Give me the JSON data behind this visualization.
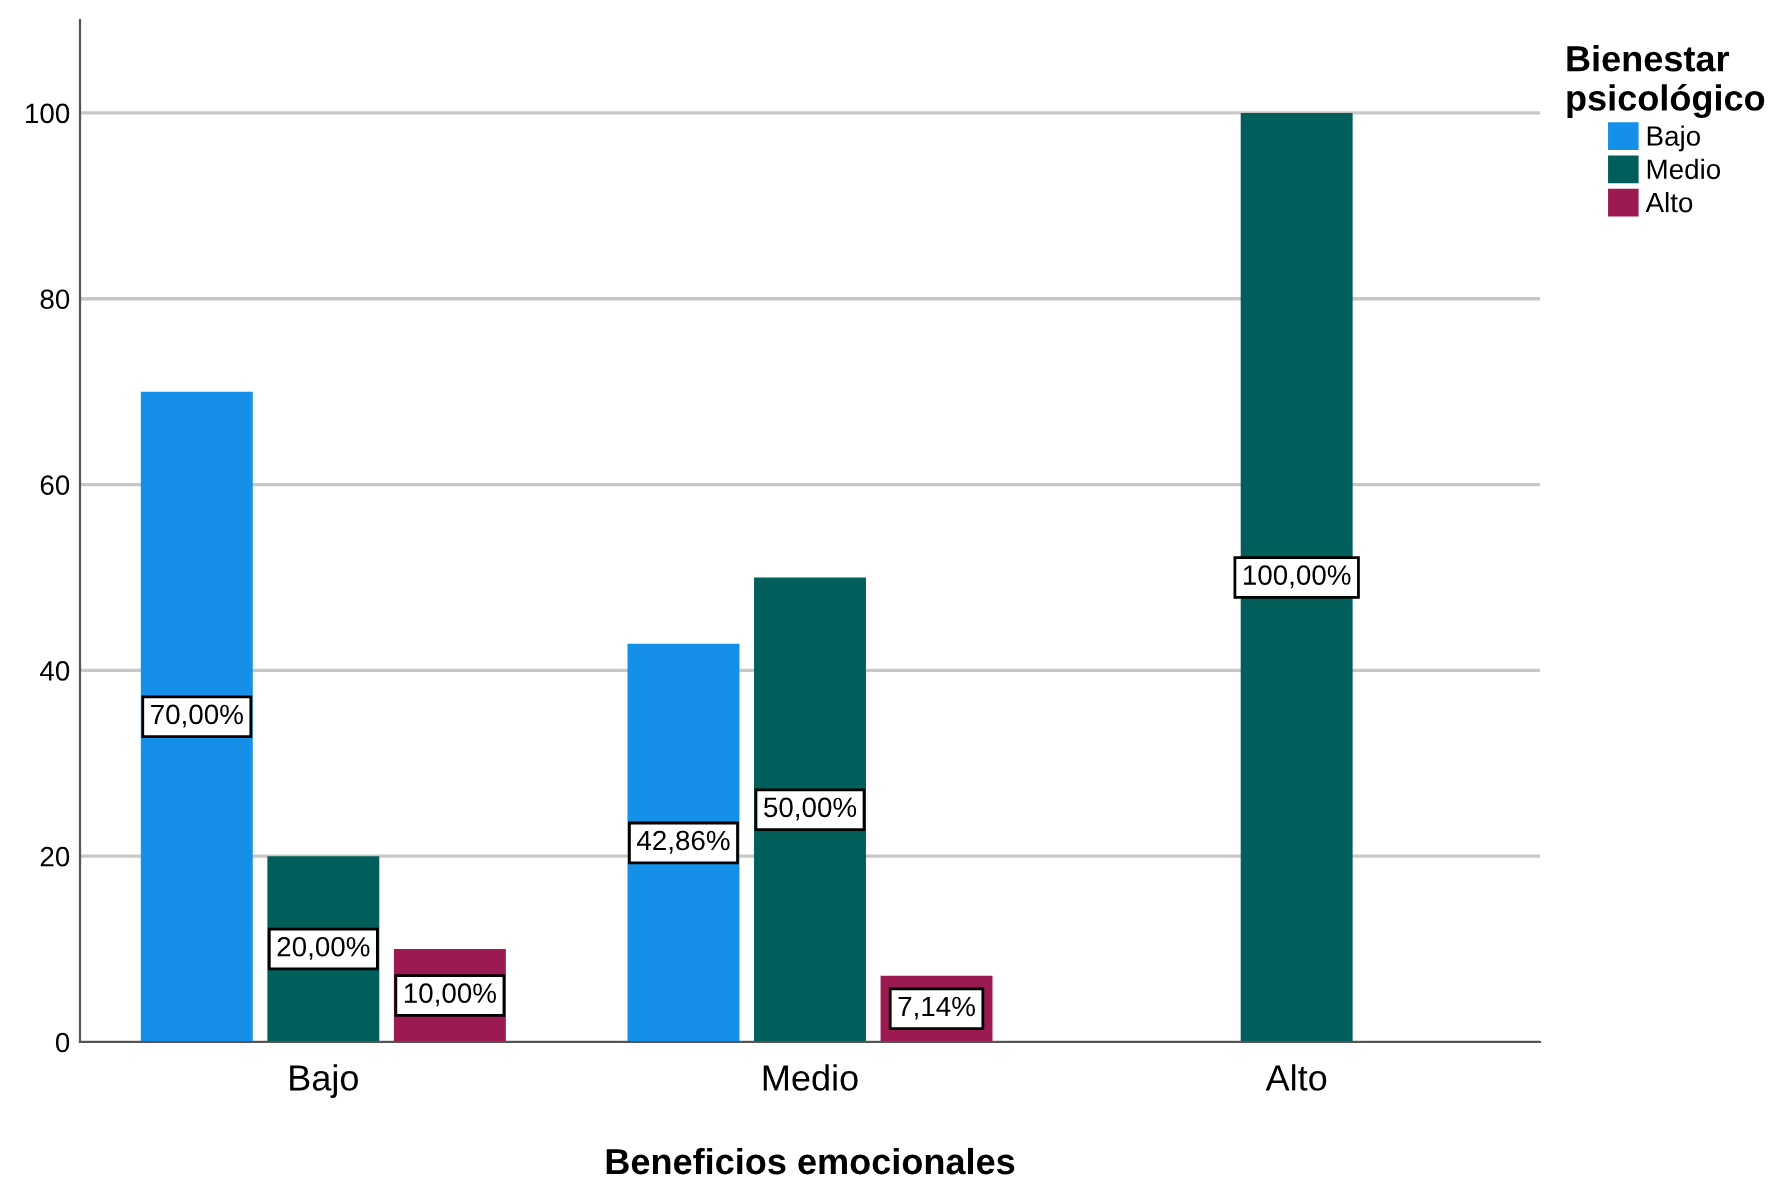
{
  "chart_data": {
    "type": "bar",
    "xlabel": "Beneficios emocionales",
    "legend_title": "Bienestar\npsicológico",
    "categories": [
      "Bajo",
      "Medio",
      "Alto"
    ],
    "series": [
      {
        "name": "Bajo",
        "color": "#1590e8",
        "values": [
          70,
          42.86,
          null
        ],
        "value_labels": [
          "70,00%",
          "42,86%",
          null
        ]
      },
      {
        "name": "Medio",
        "color": "#005f5a",
        "values": [
          20,
          50,
          100
        ],
        "value_labels": [
          "20,00%",
          "50,00%",
          "100,00%"
        ]
      },
      {
        "name": "Alto",
        "color": "#9c1a52",
        "values": [
          10,
          7.14,
          null
        ],
        "value_labels": [
          "10,00%",
          "7,14%",
          null
        ]
      }
    ],
    "ylim": [
      0,
      110
    ],
    "yticks": [
      0,
      20,
      40,
      60,
      80,
      100
    ],
    "grid": "y",
    "legend": "top right"
  }
}
